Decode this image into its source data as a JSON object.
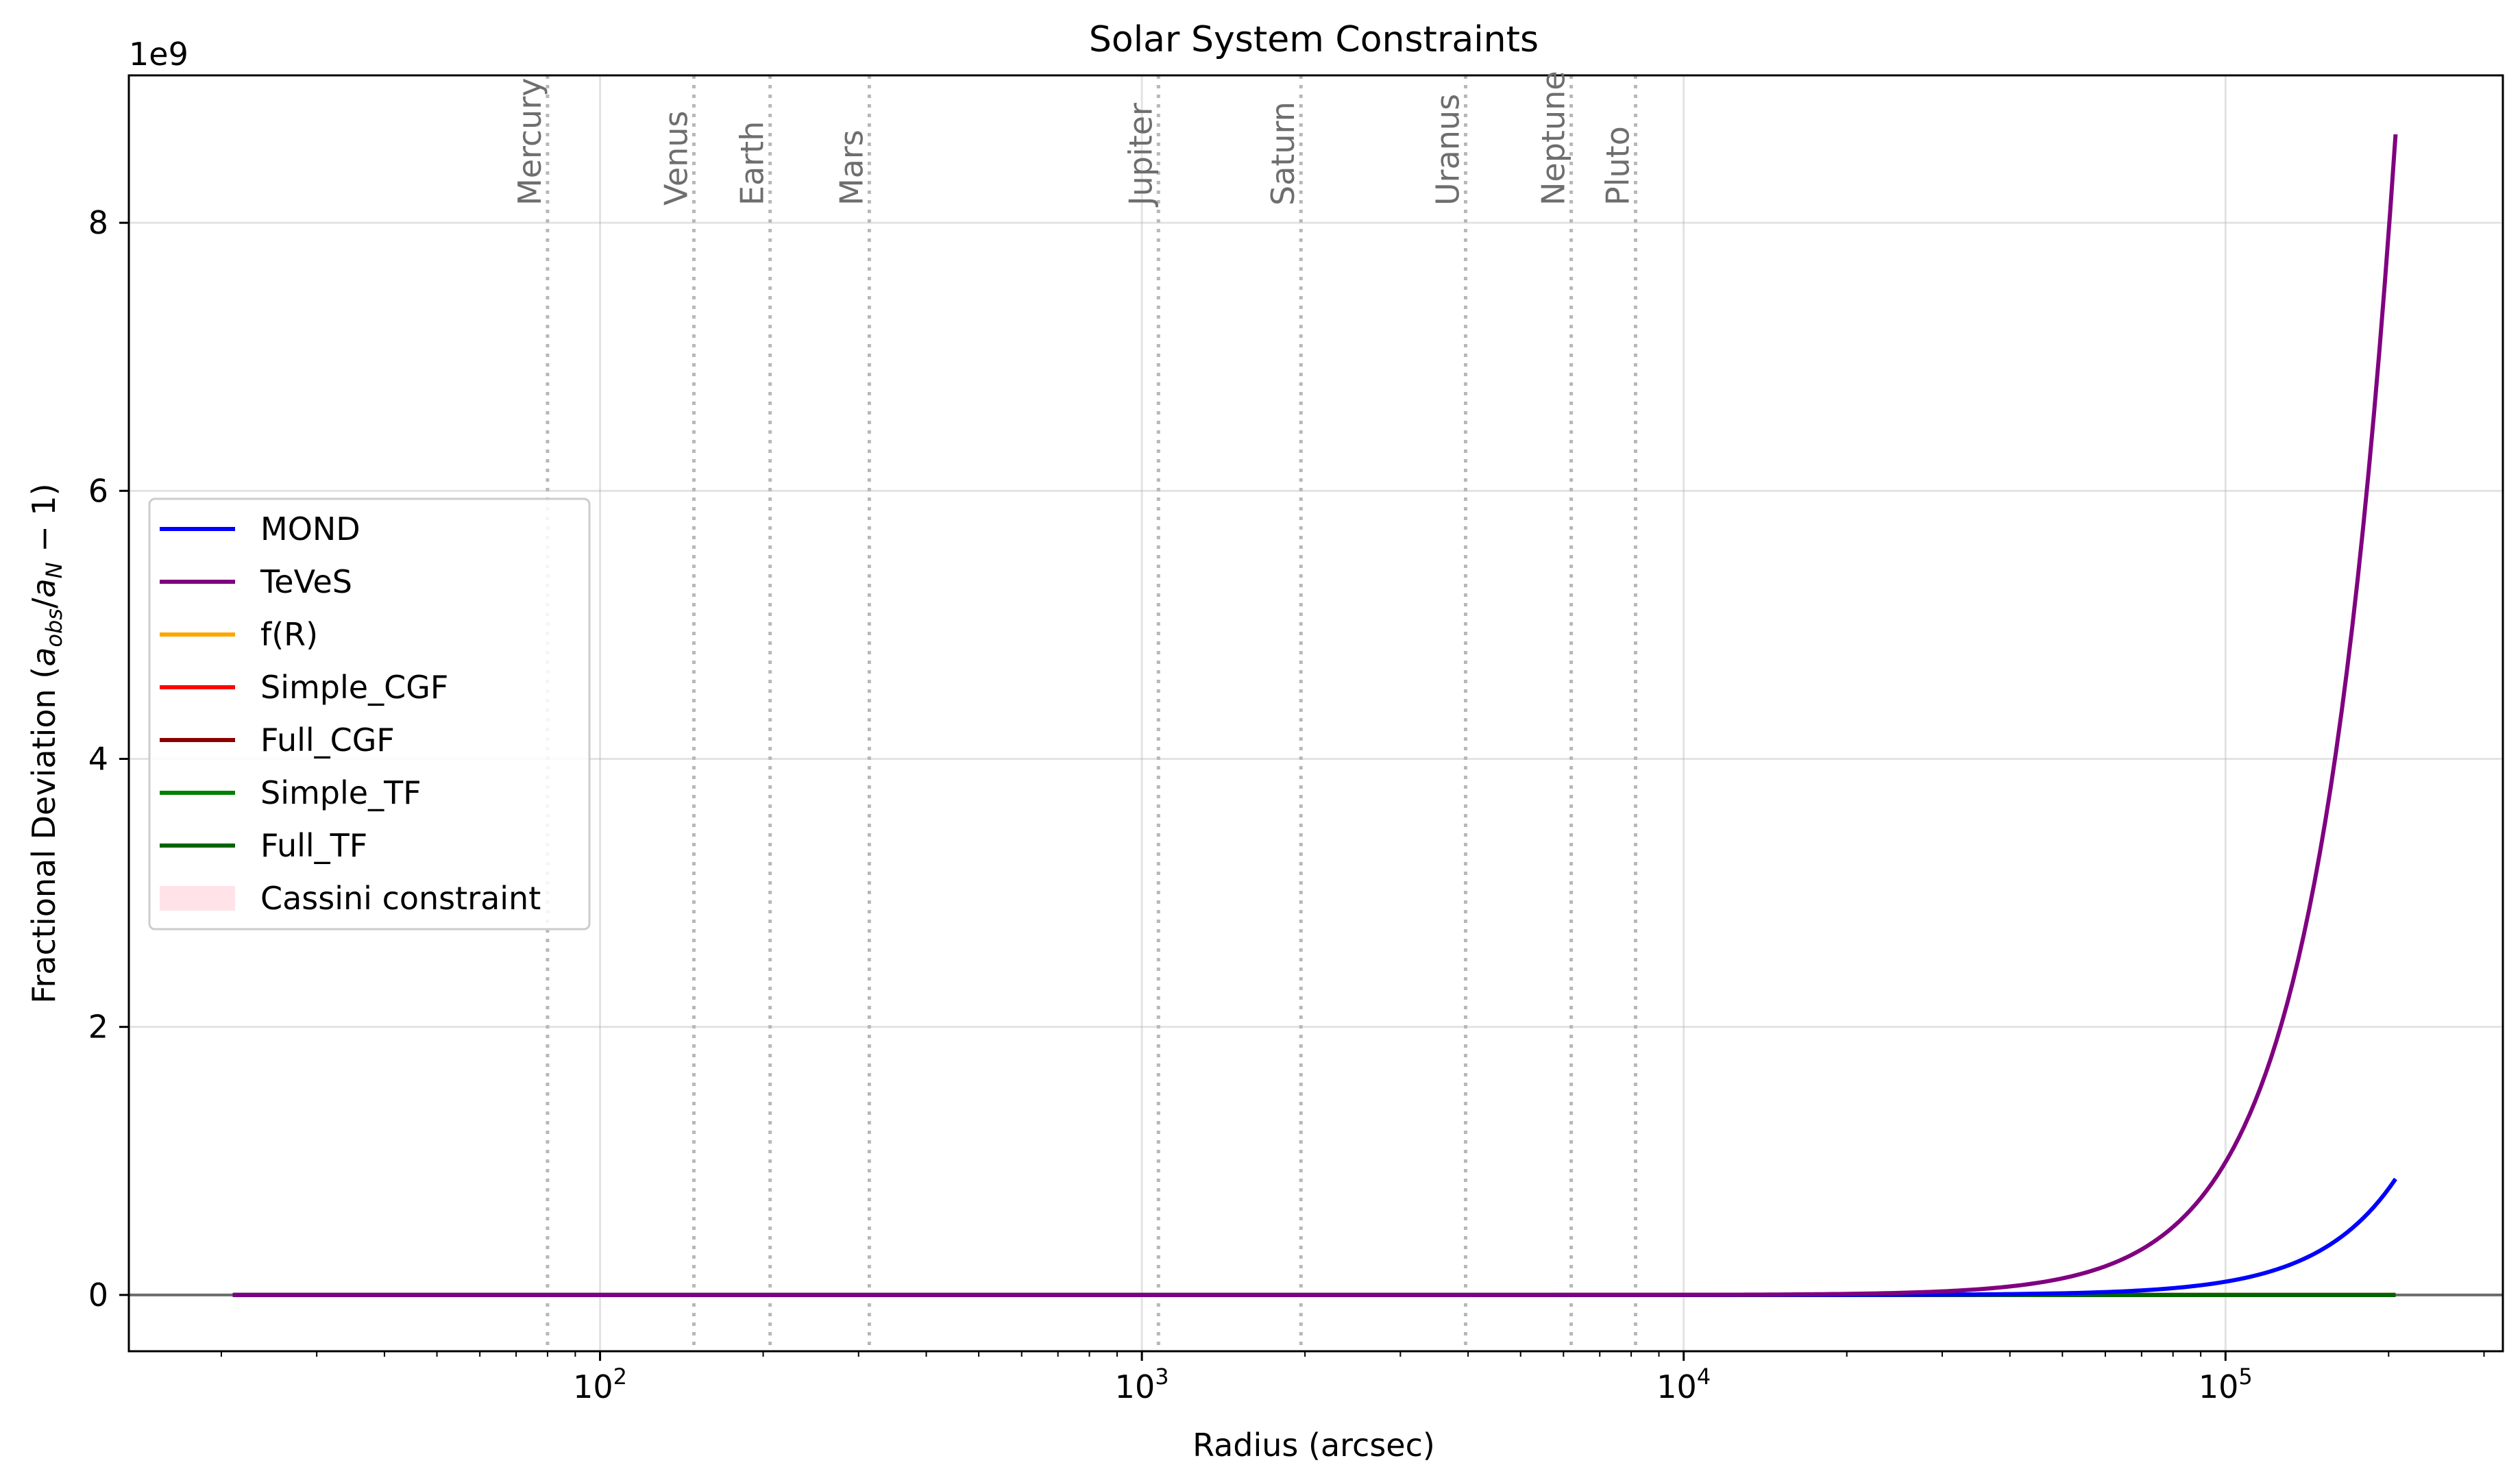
{
  "chart_data": {
    "type": "line",
    "title": "Solar System Constraints",
    "xlabel": "Radius (arcsec)",
    "ylabel": "Fractional Deviation (a_obs/a_N − 1)",
    "ylabel_parts": {
      "prefix": "Fractional Deviation (",
      "a1": "a",
      "s1": "obs",
      "slash": "/",
      "a2": "a",
      "s2": "N",
      "suffix": " − 1)"
    },
    "x_scale": "log",
    "xlim": [
      13.5,
      325000
    ],
    "ylim": [
      -420000000.0,
      9100000000.0
    ],
    "y_offset_label": "1e9",
    "x_ticks": [
      {
        "value": 100,
        "base": "10",
        "exp": "2"
      },
      {
        "value": 1000,
        "base": "10",
        "exp": "3"
      },
      {
        "value": 10000,
        "base": "10",
        "exp": "4"
      },
      {
        "value": 100000,
        "base": "10",
        "exp": "5"
      }
    ],
    "y_ticks": [
      {
        "value": 0,
        "label": "0"
      },
      {
        "value": 2000000000.0,
        "label": "2"
      },
      {
        "value": 4000000000.0,
        "label": "4"
      },
      {
        "value": 6000000000.0,
        "label": "6"
      },
      {
        "value": 8000000000.0,
        "label": "8"
      }
    ],
    "grid": true,
    "legend_position": "center-left",
    "zero_line": 0,
    "planets": [
      {
        "name": "Mercury",
        "x": 80
      },
      {
        "name": "Venus",
        "x": 149
      },
      {
        "name": "Earth",
        "x": 206
      },
      {
        "name": "Mars",
        "x": 314
      },
      {
        "name": "Jupiter",
        "x": 1073
      },
      {
        "name": "Saturn",
        "x": 1966
      },
      {
        "name": "Uranus",
        "x": 3958
      },
      {
        "name": "Neptune",
        "x": 6200
      },
      {
        "name": "Pluto",
        "x": 8150
      }
    ],
    "x_range": [
      21,
      206000
    ],
    "series": [
      {
        "name": "MOND",
        "color": "#0000ff",
        "model": "power",
        "coef": 866000000.0,
        "ref_x": 206000,
        "power": 3
      },
      {
        "name": "TeVeS",
        "color": "#800080",
        "model": "power",
        "coef": 8660000000.0,
        "ref_x": 206000,
        "power": 3
      },
      {
        "name": "f(R)",
        "color": "#ffa500",
        "model": "zero"
      },
      {
        "name": "Simple_CGF",
        "color": "#ff0000",
        "model": "zero"
      },
      {
        "name": "Full_CGF",
        "color": "#8b0000",
        "model": "zero"
      },
      {
        "name": "Simple_TF",
        "color": "#008000",
        "model": "zero"
      },
      {
        "name": "Full_TF",
        "color": "#006400",
        "model": "zero"
      }
    ],
    "constraint_band": {
      "name": "Cassini constraint",
      "color": "#ffc0cb"
    }
  }
}
